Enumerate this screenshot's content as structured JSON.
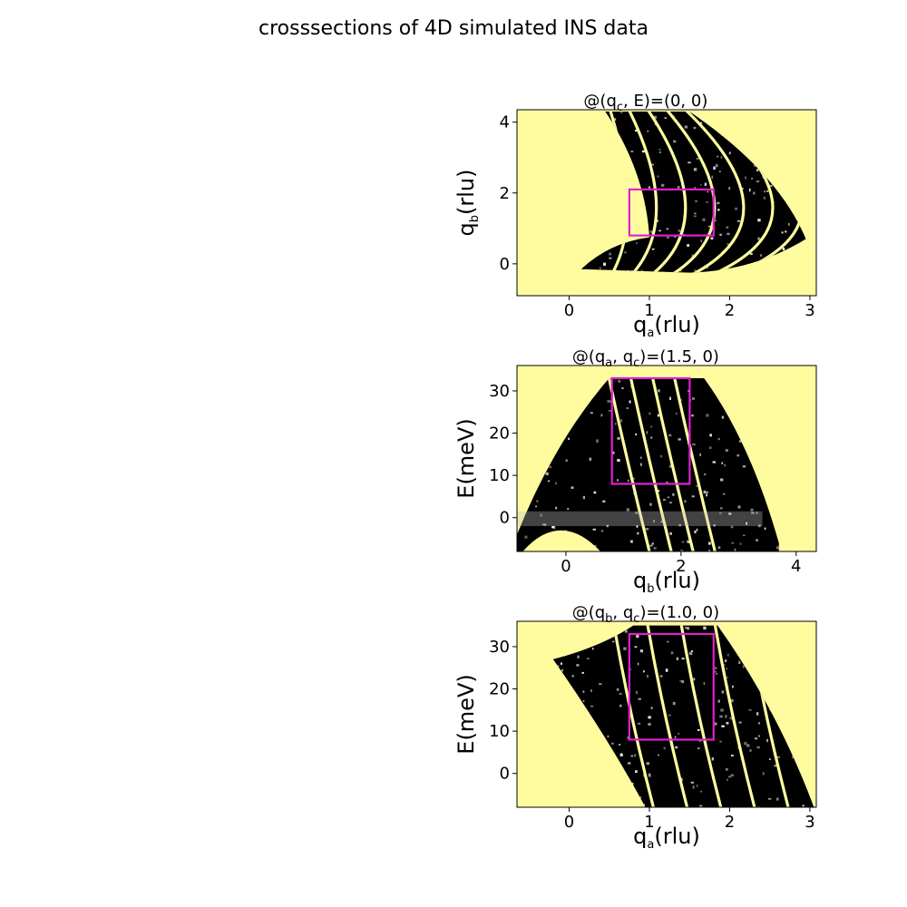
{
  "figure": {
    "title": "crosssections of 4D simulated INS data"
  },
  "colors": {
    "background_fill": "#fffca0",
    "data_dark": "#000000",
    "data_streak": "#fffca0",
    "roi_box": "#e020d0"
  },
  "chart_data": [
    {
      "type": "heatmap",
      "title": "@(q_c, E)=(0, 0)",
      "title_parts": [
        "@(q",
        "c",
        ", E)=(0, 0)"
      ],
      "xlabel": "q_a(rlu)",
      "xlabel_parts": [
        "q",
        "a",
        "(rlu)"
      ],
      "ylabel": "q_b(rlu)",
      "ylabel_parts": [
        "q",
        "b",
        "(rlu)"
      ],
      "xlim": [
        -0.65,
        3.08
      ],
      "ylim": [
        -0.9,
        4.35
      ],
      "xticks": [
        0,
        1,
        2,
        3
      ],
      "yticks": [
        0,
        2,
        4
      ],
      "roi": {
        "x": [
          0.75,
          1.8
        ],
        "y": [
          0.8,
          2.1
        ]
      },
      "coverage": "crescent",
      "streak_count": 7
    },
    {
      "type": "heatmap",
      "title": "@(q_a, q_c)=(1.5, 0)",
      "title_parts": [
        "@(q",
        "a",
        ", q",
        "c",
        ")=(1.5, 0)"
      ],
      "xlabel": "q_b(rlu)",
      "xlabel_parts": [
        "q",
        "b",
        "(rlu)"
      ],
      "ylabel": "E(meV)",
      "ylabel_parts": [
        "E(meV)"
      ],
      "xlim": [
        -0.85,
        4.35
      ],
      "ylim": [
        -8,
        36
      ],
      "xticks": [
        0,
        2,
        4
      ],
      "yticks": [
        0,
        10,
        20,
        30
      ],
      "roi": {
        "x": [
          0.8,
          2.15
        ],
        "y": [
          8,
          33
        ]
      },
      "coverage": "dome",
      "streak_count": 4
    },
    {
      "type": "heatmap",
      "title": "@(q_b, q_c)=(1.0, 0)",
      "title_parts": [
        "@(q",
        "b",
        ", q",
        "c",
        ")=(1.0, 0)"
      ],
      "xlabel": "q_a(rlu)",
      "xlabel_parts": [
        "q",
        "a",
        "(rlu)"
      ],
      "ylabel": "E(meV)",
      "ylabel_parts": [
        "E(meV)"
      ],
      "xlim": [
        -0.65,
        3.08
      ],
      "ylim": [
        -8,
        36
      ],
      "xticks": [
        0,
        1,
        2,
        3
      ],
      "yticks": [
        0,
        10,
        20,
        30
      ],
      "roi": {
        "x": [
          0.75,
          1.8
        ],
        "y": [
          8,
          33
        ]
      },
      "coverage": "fan",
      "streak_count": 6
    }
  ]
}
